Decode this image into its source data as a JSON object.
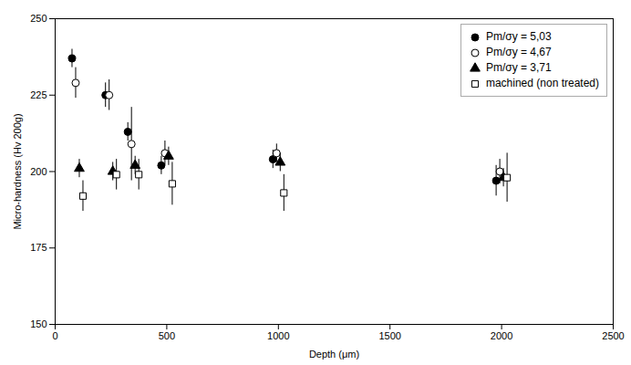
{
  "chart_data": {
    "type": "scatter",
    "title": "",
    "xlabel": "Depth (μm)",
    "ylabel": "Micro-hardness (Hv 200g)",
    "xlim": [
      0,
      2500
    ],
    "ylim": [
      150,
      250
    ],
    "xticks": [
      0,
      500,
      1000,
      1500,
      2000,
      2500
    ],
    "yticks": [
      150,
      175,
      200,
      225,
      250
    ],
    "grid": false,
    "legend": "upper right",
    "series": [
      {
        "name": "Pm/σy = 5,03",
        "color": "black",
        "marker": "filled_circle",
        "x": [
          100,
          250,
          350,
          500,
          1000,
          2000
        ],
        "values": [
          237,
          225,
          213,
          202,
          204,
          197
        ],
        "yerr": [
          3,
          4,
          3,
          3,
          3,
          5
        ]
      },
      {
        "name": "Pm/σy = 4,67",
        "color": "black",
        "marker": "open_circle",
        "x": [
          100,
          250,
          350,
          500,
          1000,
          2000
        ],
        "values": [
          229,
          225,
          209,
          206,
          206,
          200
        ],
        "yerr": [
          5,
          5,
          12,
          4,
          3,
          4
        ]
      },
      {
        "name": "Pm/σy = 3,71",
        "color": "black",
        "marker": "filled_triangle",
        "x": [
          100,
          250,
          350,
          500,
          1000,
          2000
        ],
        "values": [
          201,
          200,
          202,
          205,
          203,
          198
        ],
        "yerr": [
          3,
          3,
          3,
          3,
          3,
          3
        ]
      },
      {
        "name": "machined (non treated)",
        "color": "black",
        "marker": "open_square",
        "x": [
          100,
          250,
          350,
          500,
          1000,
          2000
        ],
        "values": [
          192,
          199,
          199,
          196,
          193,
          198
        ],
        "yerr": [
          5,
          5,
          5,
          7,
          6,
          8
        ]
      }
    ]
  }
}
